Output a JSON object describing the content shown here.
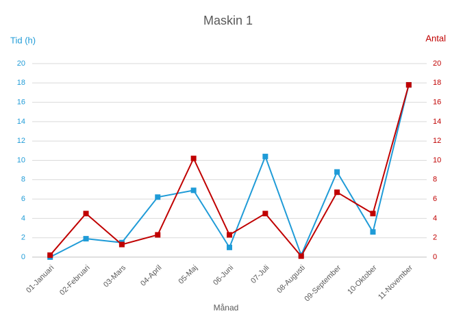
{
  "chart_data": {
    "type": "line",
    "title": "Maskin 1",
    "x_label": "Månad",
    "y_label": "Tid (h)",
    "y2_label": "Antal",
    "categories": [
      "01-Januari",
      "02-Februari",
      "03-Mars",
      "04-April",
      "05-Maj",
      "06-Juni",
      "07-Juli",
      "08-Augusti",
      "09-September",
      "10-Oktober",
      "11-November"
    ],
    "series": [
      {
        "color": "#1f9bd7",
        "values": [
          0.0,
          1.9,
          1.5,
          6.2,
          6.9,
          1.0,
          10.4,
          0.2,
          8.8,
          2.6,
          17.8
        ]
      },
      {
        "color": "#c00000",
        "axis": "y2",
        "values": [
          0.2,
          4.5,
          1.3,
          2.3,
          10.2,
          2.3,
          4.5,
          0.1,
          6.7,
          4.5,
          17.8
        ]
      }
    ],
    "ylim": [
      0,
      20
    ],
    "yticks": [
      0,
      2,
      4,
      6,
      8,
      10,
      12,
      14,
      16,
      18,
      20
    ],
    "y2lim": [
      0,
      20
    ],
    "y2ticks": [
      0,
      2,
      4,
      6,
      8,
      10,
      12,
      14,
      16,
      18,
      20
    ],
    "grid": true
  }
}
